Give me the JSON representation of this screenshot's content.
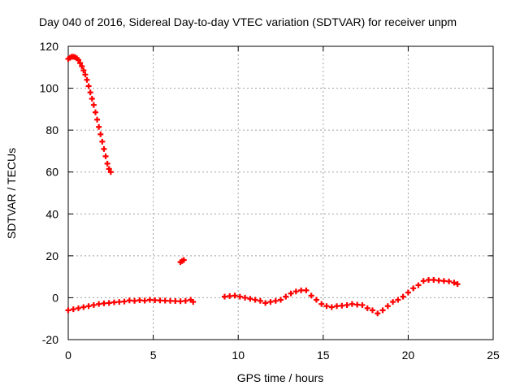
{
  "chart_data": {
    "type": "scatter",
    "title": "Day 040 of 2016, Sidereal Day-to-day VTEC variation (SDTVAR) for receiver unpm",
    "xlabel": "GPS time / hours",
    "ylabel": "SDTVAR / TECUs",
    "xlim": [
      0,
      25
    ],
    "ylim": [
      -20,
      120
    ],
    "xticks": [
      "0",
      "5",
      "10",
      "15",
      "20",
      "25"
    ],
    "yticks": [
      "-20",
      "0",
      "20",
      "40",
      "60",
      "80",
      "100",
      "120"
    ],
    "grid": true,
    "series": [
      {
        "name": "SDTVAR",
        "color": "#ff0000",
        "marker": "+",
        "points": [
          [
            0.0,
            114
          ],
          [
            0.1,
            114.5
          ],
          [
            0.2,
            115
          ],
          [
            0.3,
            115
          ],
          [
            0.4,
            114.8
          ],
          [
            0.5,
            114.3
          ],
          [
            0.6,
            113.5
          ],
          [
            0.7,
            112
          ],
          [
            0.8,
            110.5
          ],
          [
            0.9,
            108.5
          ],
          [
            1.0,
            106.5
          ],
          [
            1.1,
            104
          ],
          [
            1.2,
            101
          ],
          [
            1.3,
            98
          ],
          [
            1.4,
            95
          ],
          [
            1.5,
            92
          ],
          [
            1.6,
            88.5
          ],
          [
            1.7,
            85
          ],
          [
            1.8,
            81.5
          ],
          [
            1.9,
            78
          ],
          [
            2.0,
            74.5
          ],
          [
            2.1,
            71
          ],
          [
            2.2,
            67.5
          ],
          [
            2.3,
            64
          ],
          [
            2.4,
            61.5
          ],
          [
            2.5,
            60
          ],
          [
            6.6,
            17
          ],
          [
            6.7,
            17.5
          ],
          [
            6.8,
            18
          ],
          [
            0.0,
            -6
          ],
          [
            0.3,
            -5.5
          ],
          [
            0.6,
            -5
          ],
          [
            0.9,
            -4.5
          ],
          [
            1.2,
            -4
          ],
          [
            1.5,
            -3.5
          ],
          [
            1.8,
            -3
          ],
          [
            2.1,
            -2.7
          ],
          [
            2.4,
            -2.5
          ],
          [
            2.7,
            -2.2
          ],
          [
            3.0,
            -2
          ],
          [
            3.3,
            -1.8
          ],
          [
            3.6,
            -1.3
          ],
          [
            3.9,
            -1.5
          ],
          [
            4.2,
            -1.2
          ],
          [
            4.5,
            -1.4
          ],
          [
            4.8,
            -1
          ],
          [
            5.1,
            -1.2
          ],
          [
            5.4,
            -1.3
          ],
          [
            5.7,
            -1.4
          ],
          [
            6.0,
            -1.5
          ],
          [
            6.3,
            -1.6
          ],
          [
            6.6,
            -1.7
          ],
          [
            6.9,
            -1.5
          ],
          [
            7.2,
            -1
          ],
          [
            7.35,
            -2
          ],
          [
            9.2,
            0.5
          ],
          [
            9.5,
            0.8
          ],
          [
            9.8,
            1
          ],
          [
            10.1,
            0.5
          ],
          [
            10.4,
            0
          ],
          [
            10.7,
            -0.5
          ],
          [
            11.0,
            -1
          ],
          [
            11.3,
            -1.5
          ],
          [
            11.6,
            -2.5
          ],
          [
            11.9,
            -2
          ],
          [
            12.2,
            -1.5
          ],
          [
            12.5,
            -1
          ],
          [
            12.8,
            0.5
          ],
          [
            13.1,
            2
          ],
          [
            13.4,
            3
          ],
          [
            13.7,
            3.5
          ],
          [
            14.0,
            3.5
          ],
          [
            14.3,
            1
          ],
          [
            14.6,
            -1
          ],
          [
            14.9,
            -3
          ],
          [
            15.2,
            -4
          ],
          [
            15.5,
            -4.5
          ],
          [
            15.8,
            -4
          ],
          [
            16.1,
            -3.8
          ],
          [
            16.4,
            -3.5
          ],
          [
            16.7,
            -3
          ],
          [
            17.0,
            -3.3
          ],
          [
            17.3,
            -3.5
          ],
          [
            17.6,
            -5
          ],
          [
            17.9,
            -6
          ],
          [
            18.2,
            -7.5
          ],
          [
            18.5,
            -6
          ],
          [
            18.8,
            -4
          ],
          [
            19.1,
            -2
          ],
          [
            19.4,
            -1
          ],
          [
            19.7,
            0.5
          ],
          [
            20.0,
            2.5
          ],
          [
            20.3,
            4.5
          ],
          [
            20.6,
            6
          ],
          [
            20.9,
            8
          ],
          [
            21.2,
            8.5
          ],
          [
            21.5,
            8.5
          ],
          [
            21.8,
            8.2
          ],
          [
            22.1,
            8
          ],
          [
            22.4,
            7.8
          ],
          [
            22.7,
            7.2
          ],
          [
            22.9,
            6.5
          ]
        ]
      }
    ]
  }
}
